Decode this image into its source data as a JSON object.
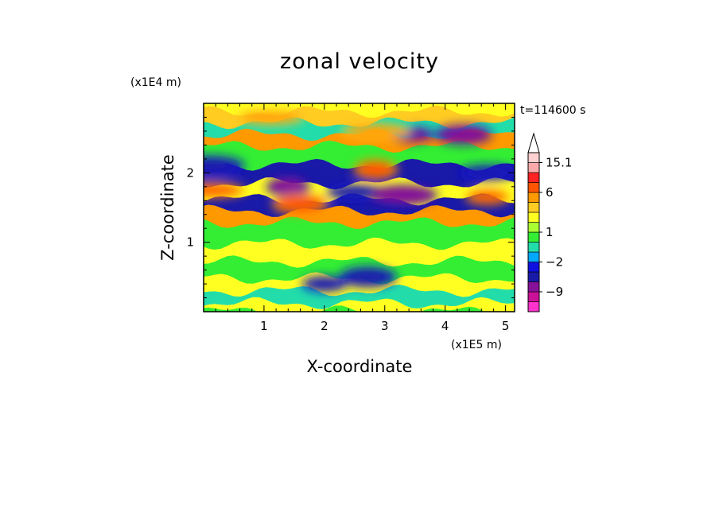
{
  "chart_data": {
    "type": "heatmap",
    "title": "zonal velocity",
    "xlabel": "X-coordinate",
    "ylabel": "Z-coordinate",
    "x_unit": "(x1E5 m)",
    "y_unit": "(x1E4 m)",
    "time_label": "t=114600 s",
    "xlim": [
      0,
      5.15
    ],
    "ylim": [
      0,
      3.0
    ],
    "x_ticks": [
      "1",
      "2",
      "3",
      "4",
      "5"
    ],
    "y_ticks": [
      "1",
      "2"
    ],
    "colorbar": {
      "levels": [
        -15,
        -12,
        -9,
        -6,
        -4,
        -2,
        -1,
        0,
        1,
        2,
        3,
        4,
        6,
        9,
        12,
        15.1
      ],
      "colors": [
        "#ff33cc",
        "#cc1199",
        "#881199",
        "#1a1aa8",
        "#1010e0",
        "#00a8ff",
        "#22ddaa",
        "#33ee33",
        "#aaff33",
        "#ffff22",
        "#ffcc22",
        "#ff9900",
        "#ff5500",
        "#ff2222",
        "#ffaaaa",
        "#ffd0d0"
      ],
      "labels": [
        "15.1",
        "6",
        "1",
        "−2",
        "−9"
      ],
      "extend_top": true
    },
    "bands": [
      {
        "z": 2.88,
        "u": 3
      },
      {
        "z": 2.72,
        "u": -1
      },
      {
        "z": 2.55,
        "u": 4
      },
      {
        "z": 2.38,
        "u": 0
      },
      {
        "z": 2.12,
        "u": -6
      },
      {
        "z": 1.85,
        "u": 2
      },
      {
        "z": 1.62,
        "u": -5
      },
      {
        "z": 1.45,
        "u": 5
      },
      {
        "z": 1.28,
        "u": 0
      },
      {
        "z": 0.98,
        "u": 2
      },
      {
        "z": 0.72,
        "u": 0
      },
      {
        "z": 0.48,
        "u": 2
      },
      {
        "z": 0.3,
        "u": -1
      },
      {
        "z": 0.12,
        "u": 2
      },
      {
        "z": 0.0,
        "u": 0
      }
    ],
    "features": [
      {
        "x": 3.45,
        "z": 2.55,
        "u": -7
      },
      {
        "x": 4.3,
        "z": 2.55,
        "u": -7
      },
      {
        "x": 2.85,
        "z": 2.6,
        "u": 5
      },
      {
        "x": 1.4,
        "z": 1.8,
        "u": -7
      },
      {
        "x": 2.5,
        "z": 1.72,
        "u": -6
      },
      {
        "x": 3.3,
        "z": 1.68,
        "u": -7
      },
      {
        "x": 4.7,
        "z": 1.65,
        "u": 6
      },
      {
        "x": 1.6,
        "z": 1.55,
        "u": 7
      },
      {
        "x": 0.1,
        "z": 1.75,
        "u": 6
      },
      {
        "x": 2.85,
        "z": 2.05,
        "u": 7
      },
      {
        "x": 4.7,
        "z": 2.0,
        "u": -5
      },
      {
        "x": 0.1,
        "z": 2.1,
        "u": -6
      },
      {
        "x": 2.0,
        "z": 0.4,
        "u": -6
      },
      {
        "x": 2.72,
        "z": 0.5,
        "u": -5
      },
      {
        "x": 1.1,
        "z": 2.8,
        "u": 5
      }
    ]
  }
}
